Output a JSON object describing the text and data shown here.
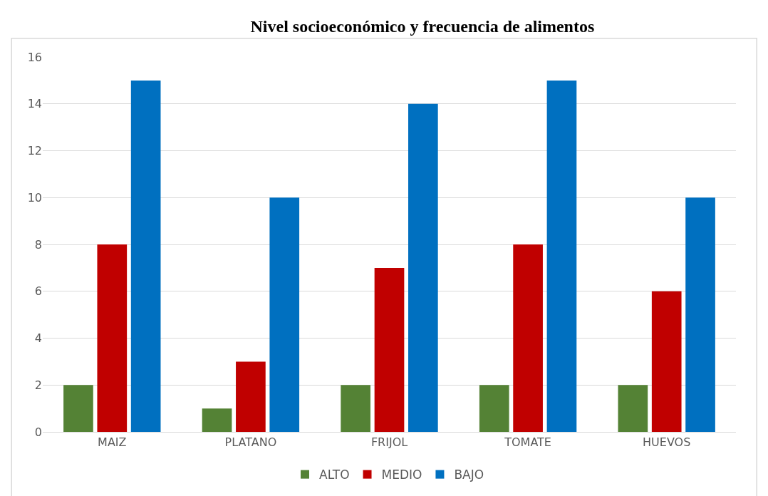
{
  "chart_data": {
    "type": "bar",
    "title": "Nivel socioeconómico y frecuencia de alimentos",
    "categories": [
      "MAIZ",
      "PLATANO",
      "FRIJOL",
      "TOMATE",
      "HUEVOS"
    ],
    "series": [
      {
        "name": "ALTO",
        "color": "#548235",
        "values": [
          2,
          1,
          2,
          2,
          2
        ]
      },
      {
        "name": "MEDIO",
        "color": "#c00000",
        "values": [
          8,
          3,
          7,
          8,
          6
        ]
      },
      {
        "name": "BAJO",
        "color": "#0070c0",
        "values": [
          15,
          10,
          14,
          15,
          10
        ]
      }
    ],
    "ylim": [
      0,
      16
    ],
    "yticks": [
      0,
      2,
      4,
      6,
      8,
      10,
      12,
      14,
      16
    ],
    "grid": "y",
    "legend": "bottom"
  }
}
